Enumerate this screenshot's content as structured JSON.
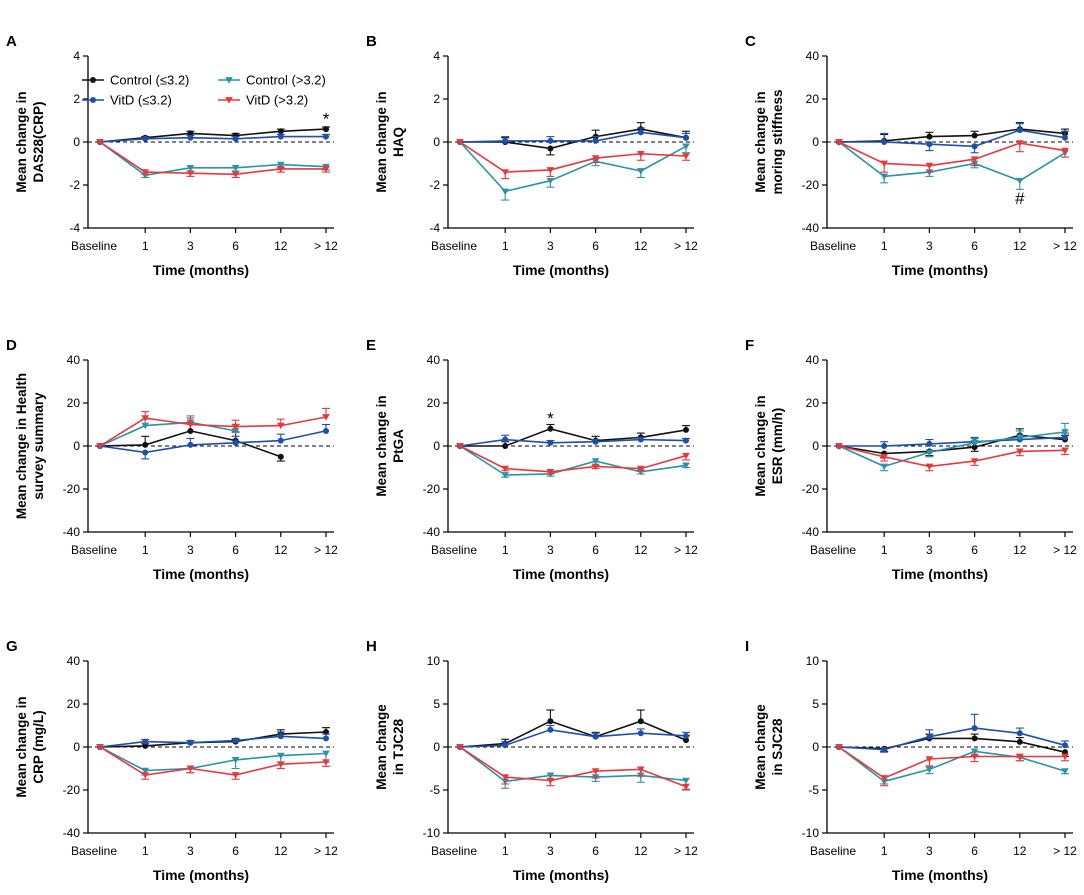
{
  "series_styles": [
    {
      "name": "Control (≤3.2)",
      "color": "#111111",
      "marker": "circle"
    },
    {
      "name": "VitD (≤3.2)",
      "color": "#1f4fa8",
      "marker": "circle"
    },
    {
      "name": "Control (>3.2)",
      "color": "#2a94a6",
      "marker": "triangle-down"
    },
    {
      "name": "VitD (>3.2)",
      "color": "#e8383d",
      "marker": "triangle-down"
    }
  ],
  "chart_data": [
    {
      "panel": "A",
      "type": "line",
      "ylabel_lines": [
        "Mean change in",
        "DAS28(CRP)"
      ],
      "xlabel": "Time (months)",
      "categories": [
        "Baseline",
        "1",
        "3",
        "6",
        "12",
        "> 12"
      ],
      "ylim": [
        -4,
        4
      ],
      "yticks": [
        -4,
        -2,
        0,
        2,
        4
      ],
      "legend": [
        "Control (≤3.2)",
        "VitD (≤3.2)",
        "Control (>3.2)",
        "VitD (>3.2)"
      ],
      "series": [
        {
          "name": "Control (≤3.2)",
          "values": [
            0,
            0.2,
            0.4,
            0.3,
            0.5,
            0.6
          ],
          "err": [
            0,
            0.05,
            0.1,
            0.1,
            0.1,
            0.1
          ]
        },
        {
          "name": "VitD (≤3.2)",
          "values": [
            0,
            0.15,
            0.2,
            0.15,
            0.25,
            0.25
          ],
          "err": [
            0,
            0.05,
            0.1,
            0.1,
            0.1,
            0.1
          ]
        },
        {
          "name": "Control (>3.2)",
          "values": [
            0,
            -1.55,
            -1.2,
            -1.2,
            -1.05,
            -1.15
          ],
          "err": [
            0,
            0.1,
            0.15,
            0.15,
            0.15,
            0.15
          ]
        },
        {
          "name": "VitD (>3.2)",
          "values": [
            0,
            -1.4,
            -1.45,
            -1.5,
            -1.25,
            -1.25
          ],
          "err": [
            0,
            0.1,
            0.15,
            0.15,
            0.15,
            0.15
          ]
        }
      ],
      "annotations": [
        {
          "text": "*",
          "x": "> 12",
          "y": 1.1
        }
      ]
    },
    {
      "panel": "B",
      "type": "line",
      "ylabel_lines": [
        "Mean change in",
        "HAQ"
      ],
      "xlabel": "Time (months)",
      "categories": [
        "Baseline",
        "1",
        "3",
        "6",
        "12",
        "> 12"
      ],
      "ylim": [
        -4,
        4
      ],
      "yticks": [
        -4,
        -2,
        0,
        2,
        4
      ],
      "series": [
        {
          "name": "Control (≤3.2)",
          "values": [
            0,
            0,
            -0.3,
            0.25,
            0.6,
            0.2
          ],
          "err": [
            0,
            0.2,
            0.3,
            0.3,
            0.3,
            0.3
          ]
        },
        {
          "name": "VitD (≤3.2)",
          "values": [
            0,
            0.05,
            0.05,
            0.05,
            0.45,
            0.2
          ],
          "err": [
            0,
            0.2,
            0.2,
            0.2,
            0.2,
            0.2
          ]
        },
        {
          "name": "Control (>3.2)",
          "values": [
            0,
            -2.3,
            -1.8,
            -0.9,
            -1.35,
            -0.2
          ],
          "err": [
            0,
            0.4,
            0.3,
            0.2,
            0.3,
            0.3
          ]
        },
        {
          "name": "VitD (>3.2)",
          "values": [
            0,
            -1.4,
            -1.3,
            -0.75,
            -0.55,
            -0.65
          ],
          "err": [
            0,
            0.3,
            0.3,
            0.2,
            0.3,
            0.2
          ]
        }
      ],
      "annotations": []
    },
    {
      "panel": "C",
      "type": "line",
      "ylabel_lines": [
        "Mean change in",
        "moring stiffness"
      ],
      "xlabel": "Time (months)",
      "categories": [
        "Baseline",
        "1",
        "3",
        "6",
        "12",
        "> 12"
      ],
      "ylim": [
        -40,
        40
      ],
      "yticks": [
        -40,
        -20,
        0,
        20,
        40
      ],
      "series": [
        {
          "name": "Control (≤3.2)",
          "values": [
            0,
            0.5,
            2.5,
            3,
            6,
            4
          ],
          "err": [
            0,
            3,
            2,
            2,
            3,
            2
          ]
        },
        {
          "name": "VitD (≤3.2)",
          "values": [
            0,
            0,
            -1,
            -2,
            5.5,
            2
          ],
          "err": [
            0,
            4,
            3,
            3,
            3,
            3
          ]
        },
        {
          "name": "Control (>3.2)",
          "values": [
            0,
            -16,
            -14,
            -10,
            -18,
            -5
          ],
          "err": [
            0,
            3,
            2,
            2,
            4,
            2
          ]
        },
        {
          "name": "VitD (>3.2)",
          "values": [
            0,
            -10,
            -11,
            -8,
            -0.5,
            -4
          ],
          "err": [
            0,
            4,
            3,
            3,
            4,
            3
          ]
        }
      ],
      "annotations": [
        {
          "text": "#",
          "x": "12",
          "y": -26
        }
      ]
    },
    {
      "panel": "D",
      "type": "line",
      "ylabel_lines": [
        "Mean change in Health",
        "survey summary"
      ],
      "xlabel": "Time (months)",
      "categories": [
        "Baseline",
        "1",
        "3",
        "6",
        "12",
        "> 12"
      ],
      "ylim": [
        -40,
        40
      ],
      "yticks": [
        -40,
        -20,
        0,
        20,
        40
      ],
      "series": [
        {
          "name": "Control (≤3.2)",
          "values": [
            0,
            0.5,
            7,
            2.5,
            -5,
            null
          ],
          "err": [
            0,
            4,
            4,
            4,
            2,
            0
          ]
        },
        {
          "name": "VitD (≤3.2)",
          "values": [
            0,
            -3,
            0.5,
            1.5,
            2.5,
            7
          ],
          "err": [
            0,
            3,
            3,
            3,
            3,
            3
          ]
        },
        {
          "name": "Control (>3.2)",
          "values": [
            0,
            9.5,
            11,
            7,
            null,
            null
          ],
          "err": [
            0,
            3,
            3,
            3,
            0,
            0
          ]
        },
        {
          "name": "VitD (>3.2)",
          "values": [
            0,
            13,
            10,
            9,
            9.5,
            13.5
          ],
          "err": [
            0,
            3,
            3,
            3,
            3,
            4
          ]
        }
      ],
      "annotations": []
    },
    {
      "panel": "E",
      "type": "line",
      "ylabel_lines": [
        "Mean change in",
        "PtGA"
      ],
      "xlabel": "Time (months)",
      "categories": [
        "Baseline",
        "1",
        "3",
        "6",
        "12",
        "> 12"
      ],
      "ylim": [
        -40,
        40
      ],
      "yticks": [
        -40,
        -20,
        0,
        20,
        40
      ],
      "series": [
        {
          "name": "Control (≤3.2)",
          "values": [
            0,
            0,
            8,
            2.5,
            4,
            7.5
          ],
          "err": [
            0,
            2,
            2,
            2,
            2,
            2
          ]
        },
        {
          "name": "VitD (≤3.2)",
          "values": [
            0,
            3,
            1.5,
            2,
            3,
            2.5
          ],
          "err": [
            0,
            2,
            1,
            1,
            1,
            1
          ]
        },
        {
          "name": "Control (>3.2)",
          "values": [
            0,
            -13.5,
            -13,
            -7,
            -12,
            -9
          ],
          "err": [
            0,
            1,
            1,
            2,
            1,
            1
          ]
        },
        {
          "name": "VitD (>3.2)",
          "values": [
            0,
            -10.5,
            -12,
            -9.5,
            -10.5,
            -4.5
          ],
          "err": [
            0,
            1,
            1,
            1,
            1,
            2
          ]
        }
      ],
      "annotations": [
        {
          "text": "*",
          "x": "3",
          "y": 13
        }
      ]
    },
    {
      "panel": "F",
      "type": "line",
      "ylabel_lines": [
        "Mean change in",
        "ESR (mm/h)"
      ],
      "xlabel": "Time (months)",
      "categories": [
        "Baseline",
        "1",
        "3",
        "6",
        "12",
        "> 12"
      ],
      "ylim": [
        -40,
        40
      ],
      "yticks": [
        -40,
        -20,
        0,
        20,
        40
      ],
      "series": [
        {
          "name": "Control (≤3.2)",
          "values": [
            0,
            -3.5,
            -2.5,
            -0.5,
            5,
            3
          ],
          "err": [
            0,
            2,
            2,
            2,
            3,
            2
          ]
        },
        {
          "name": "VitD (≤3.2)",
          "values": [
            0,
            0,
            1,
            2,
            3,
            4
          ],
          "err": [
            0,
            2,
            2,
            2,
            2,
            2
          ]
        },
        {
          "name": "Control (>3.2)",
          "values": [
            0,
            -9.5,
            -3,
            1.5,
            4,
            6.5
          ],
          "err": [
            0,
            2,
            2,
            2,
            3,
            4
          ]
        },
        {
          "name": "VitD (>3.2)",
          "values": [
            0,
            -5,
            -9.5,
            -7,
            -2.5,
            -2
          ],
          "err": [
            0,
            2,
            2,
            2,
            2,
            2
          ]
        }
      ],
      "annotations": []
    },
    {
      "panel": "G",
      "type": "line",
      "ylabel_lines": [
        "Mean change in",
        "CRP (mg/L)"
      ],
      "xlabel": "Time (months)",
      "categories": [
        "Baseline",
        "1",
        "3",
        "6",
        "12",
        "> 12"
      ],
      "ylim": [
        -40,
        40
      ],
      "yticks": [
        -40,
        -20,
        0,
        20,
        40
      ],
      "series": [
        {
          "name": "Control (≤3.2)",
          "values": [
            0,
            0.5,
            2,
            2.5,
            6,
            7
          ],
          "err": [
            0,
            1,
            1,
            1,
            2,
            2
          ]
        },
        {
          "name": "VitD (≤3.2)",
          "values": [
            0,
            2.5,
            2,
            3,
            5,
            4
          ],
          "err": [
            0,
            1,
            1,
            1,
            2,
            2
          ]
        },
        {
          "name": "Control (>3.2)",
          "values": [
            0,
            -11,
            -10,
            -6,
            -4,
            -3
          ],
          "err": [
            0,
            2,
            2,
            4,
            3,
            4
          ]
        },
        {
          "name": "VitD (>3.2)",
          "values": [
            0,
            -13,
            -10,
            -13,
            -8,
            -7
          ],
          "err": [
            0,
            2,
            2,
            2,
            2,
            2
          ]
        }
      ],
      "annotations": []
    },
    {
      "panel": "H",
      "type": "line",
      "ylabel_lines": [
        "Mean change",
        "in TJC28"
      ],
      "xlabel": "Time (months)",
      "categories": [
        "Baseline",
        "1",
        "3",
        "6",
        "12",
        "> 12"
      ],
      "ylim": [
        -10,
        10
      ],
      "yticks": [
        -10,
        -5,
        0,
        5,
        10
      ],
      "series": [
        {
          "name": "Control (≤3.2)",
          "values": [
            0,
            0.4,
            3,
            1.2,
            3,
            0.8
          ],
          "err": [
            0,
            0.5,
            1.3,
            0.5,
            1.3,
            0.5
          ]
        },
        {
          "name": "VitD (≤3.2)",
          "values": [
            0,
            0.2,
            2,
            1.2,
            1.6,
            1.3
          ],
          "err": [
            0,
            0.4,
            0.5,
            0.4,
            0.5,
            0.4
          ]
        },
        {
          "name": "Control (>3.2)",
          "values": [
            0,
            -4,
            -3.3,
            -3.5,
            -3.3,
            -3.9
          ],
          "err": [
            0,
            0.8,
            0.6,
            0.5,
            0.8,
            1
          ]
        },
        {
          "name": "VitD (>3.2)",
          "values": [
            0,
            -3.5,
            -3.9,
            -2.8,
            -2.6,
            -4.6
          ],
          "err": [
            0,
            0.8,
            0.6,
            0.8,
            0.8,
            0.4
          ]
        }
      ],
      "annotations": []
    },
    {
      "panel": "I",
      "type": "line",
      "ylabel_lines": [
        "Mean change",
        "in SJC28"
      ],
      "xlabel": "Time (months)",
      "categories": [
        "Baseline",
        "1",
        "3",
        "6",
        "12",
        "> 12"
      ],
      "ylim": [
        -10,
        10
      ],
      "yticks": [
        -10,
        -5,
        0,
        5,
        10
      ],
      "series": [
        {
          "name": "Control (≤3.2)",
          "values": [
            0,
            -0.2,
            1,
            1,
            0.6,
            -0.6
          ],
          "err": [
            0,
            0.3,
            0.5,
            0.5,
            0.5,
            0.5
          ]
        },
        {
          "name": "VitD (≤3.2)",
          "values": [
            0,
            -0.3,
            1.2,
            2.2,
            1.6,
            0.2
          ],
          "err": [
            0,
            0.3,
            0.8,
            1.6,
            0.6,
            0.5
          ]
        },
        {
          "name": "Control (>3.2)",
          "values": [
            0,
            -4,
            -2.6,
            -0.5,
            -1.2,
            -2.8
          ],
          "err": [
            0,
            0.3,
            0.5,
            0.5,
            0.4,
            0.3
          ]
        },
        {
          "name": "VitD (>3.2)",
          "values": [
            0,
            -3.6,
            -1.4,
            -1.1,
            -1.1,
            -1.1
          ],
          "err": [
            0,
            0.9,
            0.8,
            0.6,
            0.5,
            0.5
          ]
        }
      ],
      "annotations": []
    }
  ]
}
